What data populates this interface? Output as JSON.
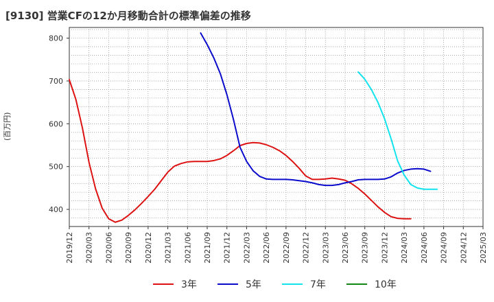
{
  "chart_data": {
    "type": "line",
    "title": "[9130]  営業CFの12か月移動合計の標準偏差の推移",
    "ylabel": "(百万円)",
    "xlabel": "",
    "ylim": [
      360,
      825
    ],
    "yticks": [
      400,
      500,
      600,
      700,
      800
    ],
    "x_tick_labels": [
      "2019/12",
      "2020/03",
      "2020/06",
      "2020/09",
      "2020/12",
      "2021/03",
      "2021/06",
      "2021/09",
      "2021/12",
      "2022/03",
      "2022/06",
      "2022/09",
      "2022/12",
      "2023/03",
      "2023/06",
      "2023/09",
      "2023/12",
      "2024/03",
      "2024/06",
      "2024/09",
      "2024/12",
      "2025/03"
    ],
    "grid": true,
    "legend_position": "bottom",
    "series": [
      {
        "name": "3年",
        "color": "#dd1111",
        "start": "2019/12",
        "values": [
          703,
          657,
          590,
          510,
          448,
          403,
          378,
          370,
          375,
          386,
          399,
          414,
          430,
          447,
          467,
          487,
          501,
          507,
          511,
          512,
          512,
          512,
          514,
          518,
          526,
          537,
          549,
          554,
          556,
          555,
          551,
          545,
          537,
          526,
          512,
          496,
          478,
          470,
          470,
          471,
          473,
          471,
          468,
          460,
          449,
          436,
          421,
          406,
          393,
          383,
          379,
          378,
          378
        ]
      },
      {
        "name": "5年",
        "color": "#0a0acc",
        "start": "2021/08",
        "values": [
          812,
          785,
          754,
          717,
          668,
          610,
          545,
          512,
          490,
          477,
          471,
          470,
          470,
          470,
          469,
          467,
          465,
          462,
          458,
          456,
          456,
          458,
          462,
          465,
          469,
          470,
          470,
          470,
          471,
          476,
          485,
          491,
          494,
          495,
          494,
          489
        ]
      },
      {
        "name": "7年",
        "color": "#11e3ee",
        "start": "2023/08",
        "values": [
          721,
          704,
          680,
          650,
          612,
          565,
          513,
          480,
          458,
          450,
          447,
          447,
          447
        ]
      },
      {
        "name": "10年",
        "color": "#118811",
        "start": "2024/09",
        "values": []
      }
    ]
  }
}
